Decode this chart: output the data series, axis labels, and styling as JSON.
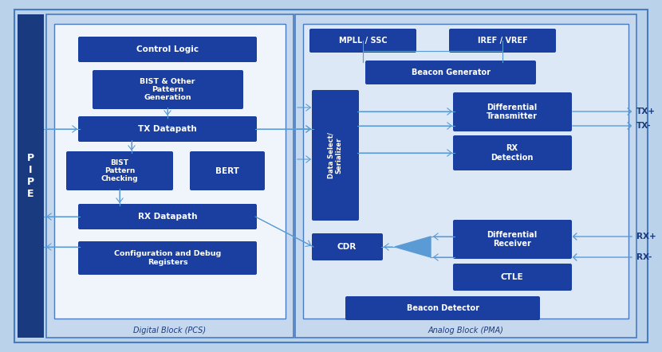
{
  "bg_outer": "#bad3ea",
  "bg_pipe": "#1a3a80",
  "bg_digital_outer": "#c5d8ee",
  "bg_digital_inner": "#f0f5fb",
  "bg_analog_outer": "#c5d8ee",
  "bg_analog_inner": "#dce8f5",
  "block_fill": "#1a3fa0",
  "arrow_color": "#5b9bd5",
  "label_color": "#1a3a80",
  "pipe_label": "P\nI\nP\nE",
  "digital_label": "Digital Block (PCS)",
  "analog_label": "Analog Block (PMA)"
}
